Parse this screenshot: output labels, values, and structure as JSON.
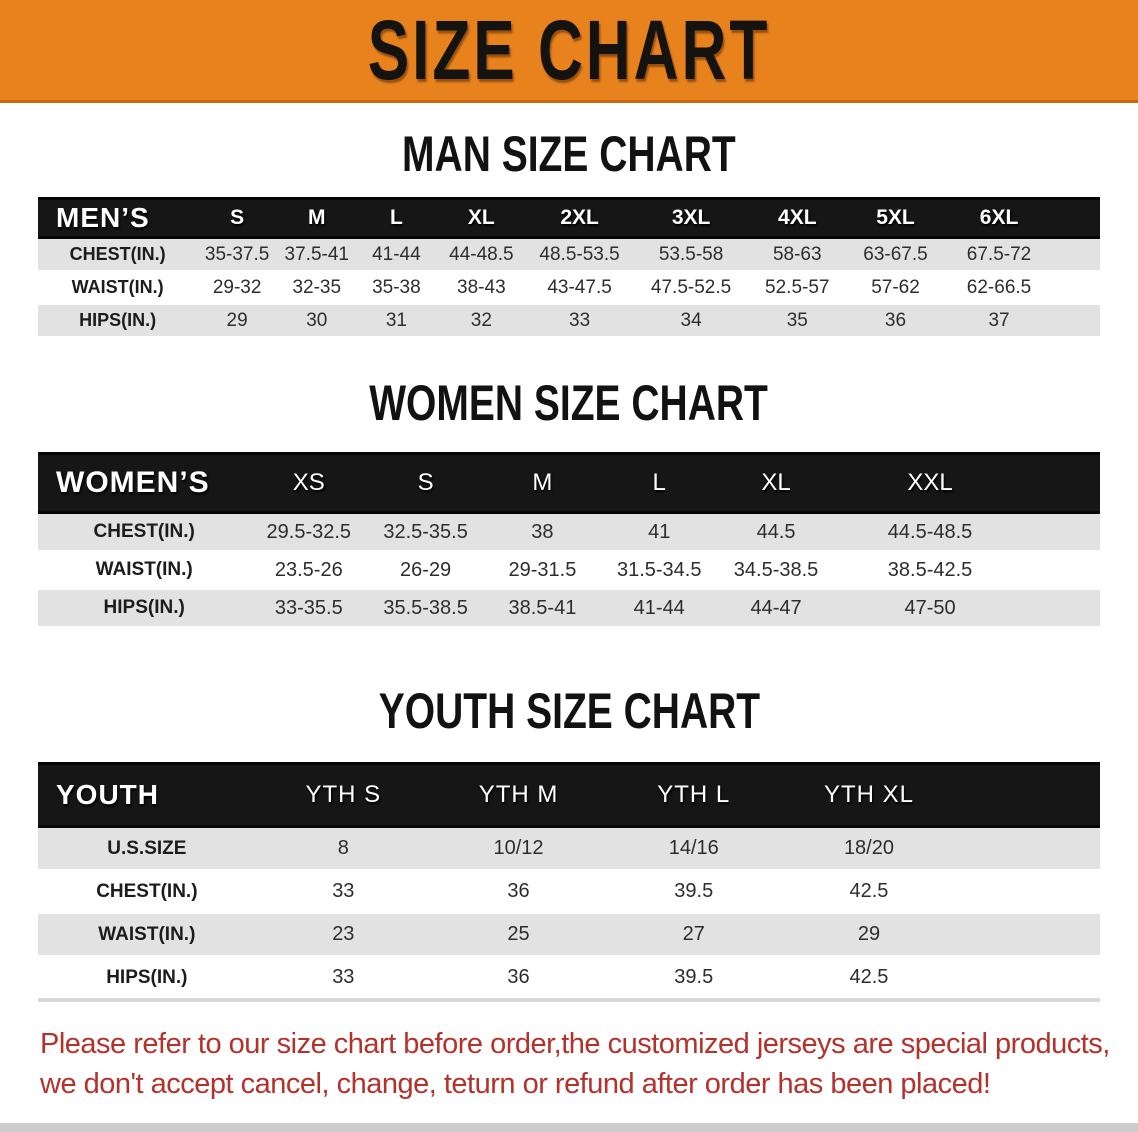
{
  "banner": {
    "title": "SIZE CHART"
  },
  "men": {
    "heading": "MAN SIZE CHART",
    "header_label": "MEN’S",
    "sizes": [
      "S",
      "M",
      "L",
      "XL",
      "2XL",
      "3XL",
      "4XL",
      "5XL",
      "6XL"
    ],
    "rows": [
      {
        "label": "CHEST(IN.)",
        "values": [
          "35-37.5",
          "37.5-41",
          "41-44",
          "44-48.5",
          "48.5-53.5",
          "53.5-58",
          "58-63",
          "63-67.5",
          "67.5-72"
        ]
      },
      {
        "label": "WAIST(IN.)",
        "values": [
          "29-32",
          "32-35",
          "35-38",
          "38-43",
          "43-47.5",
          "47.5-52.5",
          "52.5-57",
          "57-62",
          "62-66.5"
        ]
      },
      {
        "label": "HIPS(IN.)",
        "values": [
          "29",
          "30",
          "31",
          "32",
          "33",
          "34",
          "35",
          "36",
          "37"
        ]
      }
    ]
  },
  "women": {
    "heading": "WOMEN SIZE CHART",
    "header_label": "WOMEN’S",
    "sizes": [
      "XS",
      "S",
      "M",
      "L",
      "XL",
      "XXL"
    ],
    "rows": [
      {
        "label": "CHEST(IN.)",
        "values": [
          "29.5-32.5",
          "32.5-35.5",
          "38",
          "41",
          "44.5",
          "44.5-48.5"
        ]
      },
      {
        "label": "WAIST(IN.)",
        "values": [
          "23.5-26",
          "26-29",
          "29-31.5",
          "31.5-34.5",
          "34.5-38.5",
          "38.5-42.5"
        ]
      },
      {
        "label": "HIPS(IN.)",
        "values": [
          "33-35.5",
          "35.5-38.5",
          "38.5-41",
          "41-44",
          "44-47",
          "47-50"
        ]
      }
    ]
  },
  "youth": {
    "heading": "YOUTH SIZE CHART",
    "header_label": "YOUTH",
    "sizes": [
      "YTH S",
      "YTH M",
      "YTH L",
      "YTH XL"
    ],
    "rows": [
      {
        "label": "U.S.SIZE",
        "values": [
          "8",
          "10/12",
          "14/16",
          "18/20"
        ]
      },
      {
        "label": "CHEST(IN.)",
        "values": [
          "33",
          "36",
          "39.5",
          "42.5"
        ]
      },
      {
        "label": "WAIST(IN.)",
        "values": [
          "23",
          "25",
          "27",
          "29"
        ]
      },
      {
        "label": "HIPS(IN.)",
        "values": [
          "33",
          "36",
          "39.5",
          "42.5"
        ]
      }
    ]
  },
  "disclaimer": {
    "line1": "Please refer to our size chart before order,the customized jerseys are special products,",
    "line2": "we don't accept cancel, change, teturn or refund after order has been placed!"
  },
  "colors": {
    "banner_bg": "#E8821D",
    "banner_border": "#C4690F",
    "header_bar": "#161616",
    "row_stripe": "#E2E2E2",
    "disclaimer_red": "#B3322B"
  }
}
